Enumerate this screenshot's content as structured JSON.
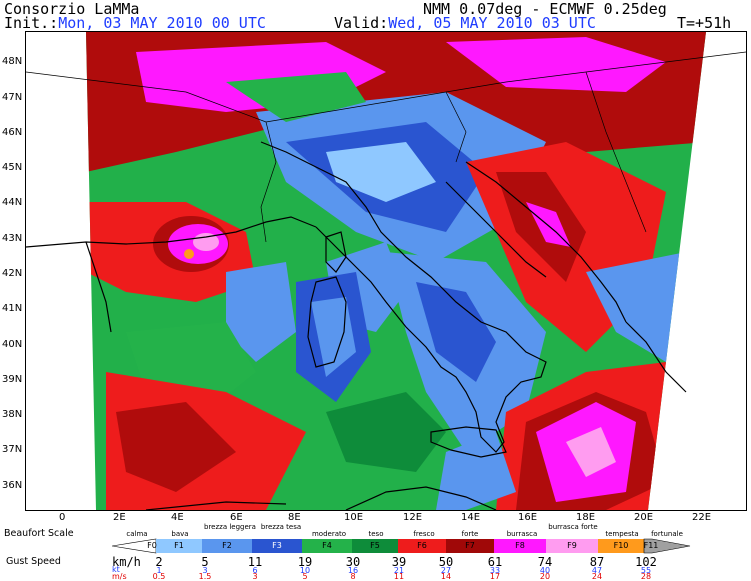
{
  "header": {
    "org": "Consorzio LaMMa",
    "model": "NMM 0.07deg - ECMWF 0.25deg",
    "init_label": "Init.:",
    "init_value": "Mon, 03 MAY 2010   00 UTC",
    "valid_label": "Valid:",
    "valid_value": "Wed, 05 MAY 2010   03 UTC",
    "forecast_step": "T=+51h"
  },
  "axes": {
    "lat_labels": [
      "48N",
      "47N",
      "46N",
      "45N",
      "44N",
      "43N",
      "42N",
      "41N",
      "40N",
      "39N",
      "38N",
      "37N",
      "36N"
    ],
    "lon_labels": [
      "0",
      "2E",
      "4E",
      "6E",
      "8E",
      "10E",
      "12E",
      "14E",
      "16E",
      "18E",
      "20E",
      "22E"
    ]
  },
  "legend": {
    "beaufort_title": "Beaufort Scale",
    "gust_title": "Gust Speed",
    "unit_kmh": "km/h",
    "unit_kt": "kt",
    "unit_ms": "m/s",
    "classes": [
      {
        "name": "calma",
        "code": "F0",
        "color": "#ffffff"
      },
      {
        "name": "bava",
        "code": "F1",
        "color": "#8fc8ff"
      },
      {
        "name": "brezza leggera",
        "code": "F2",
        "color": "#5a96ee"
      },
      {
        "name": "brezza tesa",
        "code": "F3",
        "color": "#2a55d0"
      },
      {
        "name": "moderato",
        "code": "F4",
        "color": "#24b24a"
      },
      {
        "name": "teso",
        "code": "F5",
        "color": "#0e8c3a"
      },
      {
        "name": "fresco",
        "code": "F6",
        "color": "#ee1c1c"
      },
      {
        "name": "forte",
        "code": "F7",
        "color": "#a00808"
      },
      {
        "name": "burrasca",
        "code": "F8",
        "color": "#ff18ff"
      },
      {
        "name": "burrasca forte",
        "code": "F9",
        "color": "#ff9cf0"
      },
      {
        "name": "tempesta",
        "code": "F10",
        "color": "#ff9a1c"
      },
      {
        "name": "fortunale",
        "code": "F11",
        "color": "#a0a0a0"
      }
    ],
    "kmh": [
      "2",
      "5",
      "11",
      "19",
      "30",
      "39",
      "50",
      "61",
      "74",
      "87",
      "102"
    ],
    "kt": [
      "1",
      "3",
      "6",
      "10",
      "16",
      "21",
      "27",
      "33",
      "40",
      "47",
      "55"
    ],
    "ms": [
      "0.5",
      "1.5",
      "3",
      "5",
      "8",
      "11",
      "14",
      "17",
      "20",
      "24",
      "28"
    ]
  }
}
